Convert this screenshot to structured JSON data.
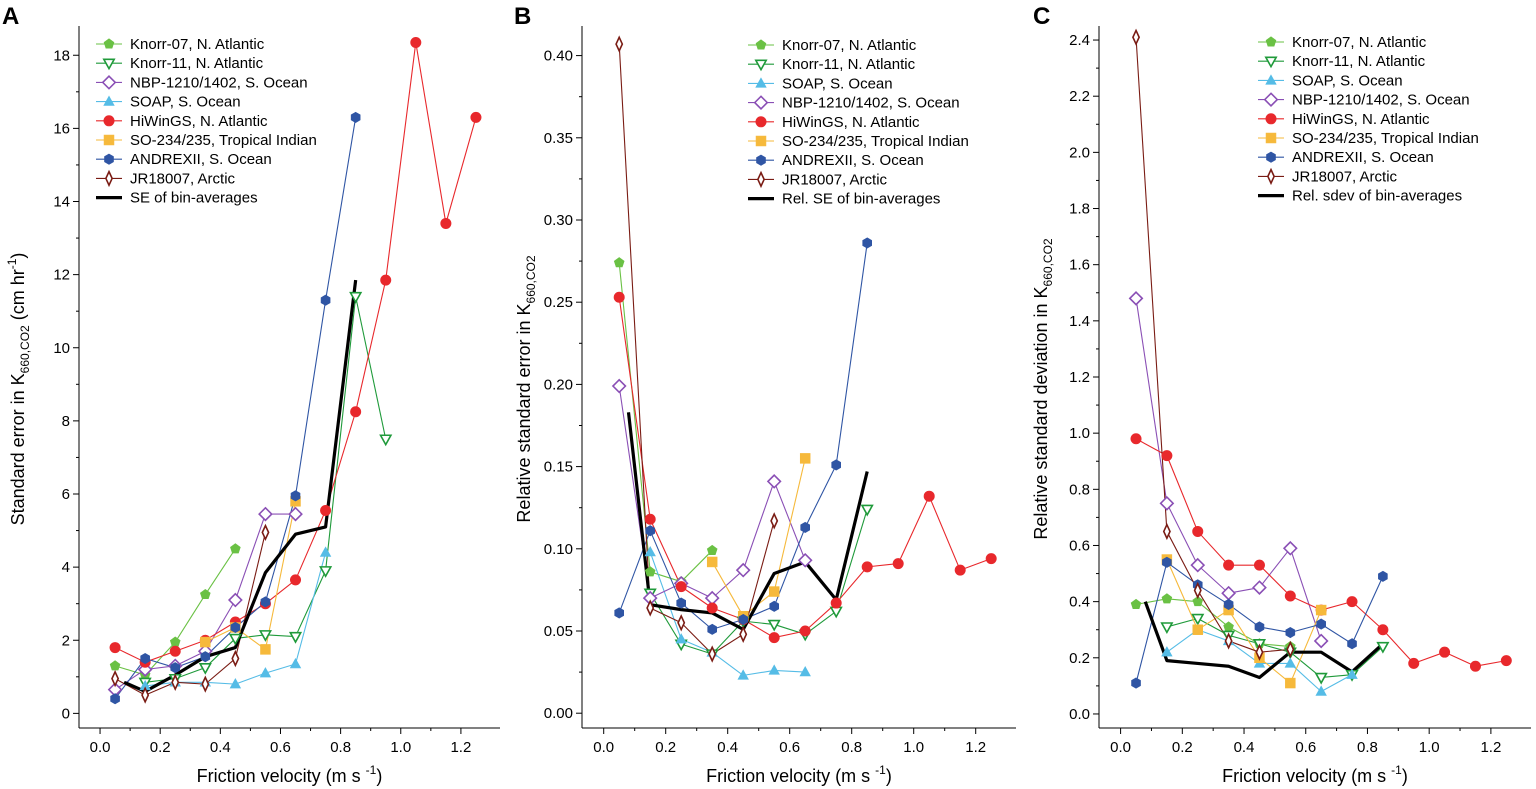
{
  "chart_data": [
    {
      "type": "line",
      "panel_label": "A",
      "xlabel": "Friction velocity (m s",
      "xlabel_sup": "-1",
      "xlabel_end": ")",
      "ylabel_parts": [
        "Standard error in K",
        "660,CO2",
        " (cm hr",
        "-1",
        ")"
      ],
      "xlim": [
        -0.07,
        1.33
      ],
      "ylim": [
        -0.4,
        18.8
      ],
      "xticks": [
        0.0,
        0.2,
        0.4,
        0.6,
        0.8,
        1.0,
        1.2
      ],
      "yticks": [
        0,
        2,
        4,
        6,
        8,
        10,
        12,
        14,
        16,
        18
      ],
      "xtick_labels": [
        "0.0",
        "0.2",
        "0.4",
        "0.6",
        "0.8",
        "1.0",
        "1.2"
      ],
      "ytick_labels": [
        "0",
        "2",
        "4",
        "6",
        "8",
        "10",
        "12",
        "14",
        "16",
        "18"
      ],
      "legend_position": "top-left",
      "series": [
        {
          "name": "Knorr-07, N. Atlantic",
          "color": "#6ac144",
          "marker": "pentagon-filled",
          "x": [
            0.05,
            0.15,
            0.25,
            0.35,
            0.45
          ],
          "y": [
            1.3,
            1.05,
            1.95,
            3.25,
            4.5
          ]
        },
        {
          "name": "Knorr-11, N. Atlantic",
          "color": "#1f9a3a",
          "marker": "triangle-down-open",
          "x": [
            0.15,
            0.25,
            0.35,
            0.45,
            0.55,
            0.65,
            0.75,
            0.85,
            0.95
          ],
          "y": [
            0.85,
            0.95,
            1.25,
            2.05,
            2.15,
            2.1,
            3.9,
            11.4,
            7.5
          ]
        },
        {
          "name": "NBP-1210/1402, S. Ocean",
          "color": "#8a4fb5",
          "marker": "diamond-open",
          "x": [
            0.05,
            0.15,
            0.25,
            0.35,
            0.45,
            0.55,
            0.65
          ],
          "y": [
            0.65,
            1.2,
            1.3,
            1.7,
            3.1,
            5.45,
            5.45
          ]
        },
        {
          "name": "SOAP, S. Ocean",
          "color": "#55bce6",
          "marker": "triangle-up-filled",
          "x": [
            0.15,
            0.25,
            0.35,
            0.45,
            0.55,
            0.65,
            0.75
          ],
          "y": [
            0.75,
            0.85,
            0.85,
            0.8,
            1.1,
            1.35,
            4.4
          ]
        },
        {
          "name": "HiWinGS, N. Atlantic",
          "color": "#e8282c",
          "marker": "circle-filled",
          "x": [
            0.05,
            0.15,
            0.25,
            0.35,
            0.45,
            0.55,
            0.65,
            0.75,
            0.85,
            0.95,
            1.05,
            1.15,
            1.25
          ],
          "y": [
            1.8,
            1.4,
            1.7,
            2.0,
            2.5,
            3.0,
            3.65,
            5.55,
            8.25,
            11.85,
            18.35,
            13.4,
            16.3
          ]
        },
        {
          "name": "SO-234/235, Tropical Indian",
          "color": "#f6b93b",
          "marker": "square-filled",
          "x": [
            0.35,
            0.45,
            0.55,
            0.65
          ],
          "y": [
            1.95,
            2.35,
            1.75,
            5.8
          ]
        },
        {
          "name": "ANDREXII, S. Ocean",
          "color": "#2f55a4",
          "marker": "hexagon-filled",
          "x": [
            0.05,
            0.15,
            0.25,
            0.35,
            0.45,
            0.55,
            0.65,
            0.75,
            0.85
          ],
          "y": [
            0.4,
            1.5,
            1.25,
            1.55,
            2.35,
            3.05,
            5.95,
            11.3,
            16.3
          ]
        },
        {
          "name": "JR18007, Arctic",
          "color": "#7a1c14",
          "marker": "narrow-diamond-open",
          "x": [
            0.05,
            0.15,
            0.25,
            0.35,
            0.45,
            0.55
          ],
          "y": [
            0.95,
            0.5,
            0.85,
            0.8,
            1.5,
            4.95
          ]
        },
        {
          "name": "SE of bin-averages",
          "color": "#000000",
          "marker": "none",
          "thick": true,
          "x": [
            0.08,
            0.15,
            0.25,
            0.35,
            0.45,
            0.55,
            0.65,
            0.75,
            0.85
          ],
          "y": [
            0.85,
            0.6,
            1.05,
            1.55,
            1.8,
            3.85,
            4.9,
            5.1,
            11.85
          ]
        }
      ]
    },
    {
      "type": "line",
      "panel_label": "B",
      "xlabel": "Friction velocity (m s",
      "xlabel_sup": "-1",
      "xlabel_end": ")",
      "ylabel_parts": [
        "Relative standard error in K",
        "660,CO2",
        "",
        "",
        ""
      ],
      "xlim": [
        -0.07,
        1.33
      ],
      "ylim": [
        -0.009,
        0.418
      ],
      "xticks": [
        0.0,
        0.2,
        0.4,
        0.6,
        0.8,
        1.0,
        1.2
      ],
      "yticks": [
        0.0,
        0.05,
        0.1,
        0.15,
        0.2,
        0.25,
        0.3,
        0.35,
        0.4
      ],
      "xtick_labels": [
        "0.0",
        "0.2",
        "0.4",
        "0.6",
        "0.8",
        "1.0",
        "1.2"
      ],
      "ytick_labels": [
        "0.00",
        "0.05",
        "0.10",
        "0.15",
        "0.20",
        "0.25",
        "0.30",
        "0.35",
        "0.40"
      ],
      "legend_position": "top-right",
      "series": [
        {
          "name": "Knorr-07, N. Atlantic",
          "color": "#6ac144",
          "marker": "pentagon-filled",
          "x": [
            0.05,
            0.15,
            0.25,
            0.35
          ],
          "y": [
            0.274,
            0.086,
            0.08,
            0.099
          ]
        },
        {
          "name": "Knorr-11, N. Atlantic",
          "color": "#1f9a3a",
          "marker": "triangle-down-open",
          "x": [
            0.15,
            0.25,
            0.35,
            0.45,
            0.55,
            0.65,
            0.75,
            0.85
          ],
          "y": [
            0.073,
            0.042,
            0.036,
            0.056,
            0.054,
            0.048,
            0.062,
            0.124
          ]
        },
        {
          "name": "SOAP, S. Ocean",
          "color": "#55bce6",
          "marker": "triangle-up-filled",
          "x": [
            0.15,
            0.25,
            0.35,
            0.45,
            0.55,
            0.65
          ],
          "y": [
            0.098,
            0.045,
            0.037,
            0.023,
            0.026,
            0.025
          ]
        },
        {
          "name": "NBP-1210/1402, S. Ocean",
          "color": "#8a4fb5",
          "marker": "diamond-open",
          "x": [
            0.05,
            0.15,
            0.25,
            0.35,
            0.45,
            0.55,
            0.65
          ],
          "y": [
            0.199,
            0.07,
            0.079,
            0.07,
            0.087,
            0.141,
            0.093
          ]
        },
        {
          "name": "HiWinGS, N. Atlantic",
          "color": "#e8282c",
          "marker": "circle-filled",
          "x": [
            0.05,
            0.15,
            0.25,
            0.35,
            0.45,
            0.55,
            0.65,
            0.75,
            0.85,
            0.95,
            1.05,
            1.15,
            1.25
          ],
          "y": [
            0.253,
            0.118,
            0.077,
            0.064,
            0.057,
            0.046,
            0.05,
            0.067,
            0.089,
            0.091,
            0.132,
            0.087,
            0.094
          ]
        },
        {
          "name": "SO-234/235, Tropical Indian",
          "color": "#f6b93b",
          "marker": "square-filled",
          "x": [
            0.35,
            0.45,
            0.55,
            0.65
          ],
          "y": [
            0.092,
            0.059,
            0.074,
            0.155
          ]
        },
        {
          "name": "ANDREXII, S. Ocean",
          "color": "#2f55a4",
          "marker": "hexagon-filled",
          "x": [
            0.05,
            0.15,
            0.25,
            0.35,
            0.45,
            0.55,
            0.65,
            0.75,
            0.85
          ],
          "y": [
            0.061,
            0.111,
            0.067,
            0.051,
            0.057,
            0.065,
            0.113,
            0.151,
            0.286
          ]
        },
        {
          "name": "JR18007, Arctic",
          "color": "#7a1c14",
          "marker": "narrow-diamond-open",
          "x": [
            0.05,
            0.15,
            0.25,
            0.35,
            0.45,
            0.55
          ],
          "y": [
            0.407,
            0.064,
            0.055,
            0.036,
            0.048,
            0.117
          ]
        },
        {
          "name": "Rel. SE of bin-averages",
          "color": "#000000",
          "marker": "none",
          "thick": true,
          "x": [
            0.08,
            0.15,
            0.25,
            0.35,
            0.45,
            0.55,
            0.65,
            0.75,
            0.85
          ],
          "y": [
            0.183,
            0.066,
            0.063,
            0.061,
            0.051,
            0.085,
            0.092,
            0.069,
            0.147
          ]
        }
      ]
    },
    {
      "type": "line",
      "panel_label": "C",
      "xlabel": "Friction velocity (m s",
      "xlabel_sup": "-1",
      "xlabel_end": ")",
      "ylabel_parts": [
        "Relative standard deviation in K",
        "660,CO2",
        "",
        "",
        ""
      ],
      "xlim": [
        -0.07,
        1.33
      ],
      "ylim": [
        -0.05,
        2.45
      ],
      "xticks": [
        0.0,
        0.2,
        0.4,
        0.6,
        0.8,
        1.0,
        1.2
      ],
      "yticks": [
        0.0,
        0.2,
        0.4,
        0.6,
        0.8,
        1.0,
        1.2,
        1.4,
        1.6,
        1.8,
        2.0,
        2.2,
        2.4
      ],
      "xtick_labels": [
        "0.0",
        "0.2",
        "0.4",
        "0.6",
        "0.8",
        "1.0",
        "1.2"
      ],
      "ytick_labels": [
        "0.0",
        "0.2",
        "0.4",
        "0.6",
        "0.8",
        "1.0",
        "1.2",
        "1.4",
        "1.6",
        "1.8",
        "2.0",
        "2.2",
        "2.4"
      ],
      "legend_position": "top-right",
      "series": [
        {
          "name": "Knorr-07, N. Atlantic",
          "color": "#6ac144",
          "marker": "pentagon-filled",
          "x": [
            0.05,
            0.15,
            0.25,
            0.35,
            0.45,
            0.55
          ],
          "y": [
            0.39,
            0.41,
            0.4,
            0.31,
            0.25,
            0.24
          ]
        },
        {
          "name": "Knorr-11, N. Atlantic",
          "color": "#1f9a3a",
          "marker": "triangle-down-open",
          "x": [
            0.15,
            0.25,
            0.35,
            0.45,
            0.55,
            0.65,
            0.75,
            0.85
          ],
          "y": [
            0.31,
            0.34,
            0.28,
            0.25,
            0.22,
            0.13,
            0.14,
            0.24
          ]
        },
        {
          "name": "SOAP, S. Ocean",
          "color": "#55bce6",
          "marker": "triangle-up-filled",
          "x": [
            0.15,
            0.25,
            0.35,
            0.45,
            0.55,
            0.65,
            0.75
          ],
          "y": [
            0.22,
            0.3,
            0.26,
            0.18,
            0.18,
            0.08,
            0.14
          ]
        },
        {
          "name": "NBP-1210/1402, S. Ocean",
          "color": "#8a4fb5",
          "marker": "diamond-open",
          "x": [
            0.05,
            0.15,
            0.25,
            0.35,
            0.45,
            0.55,
            0.65
          ],
          "y": [
            1.48,
            0.75,
            0.53,
            0.43,
            0.45,
            0.59,
            0.26
          ]
        },
        {
          "name": "HiWinGS, N. Atlantic",
          "color": "#e8282c",
          "marker": "circle-filled",
          "x": [
            0.05,
            0.15,
            0.25,
            0.35,
            0.45,
            0.55,
            0.65,
            0.75,
            0.85,
            0.95,
            1.05,
            1.15,
            1.25
          ],
          "y": [
            0.98,
            0.92,
            0.65,
            0.53,
            0.53,
            0.42,
            0.37,
            0.4,
            0.3,
            0.18,
            0.22,
            0.17,
            0.19
          ]
        },
        {
          "name": "SO-234/235, Tropical Indian",
          "color": "#f6b93b",
          "marker": "square-filled",
          "x": [
            0.15,
            0.25,
            0.35,
            0.45,
            0.55,
            0.65
          ],
          "y": [
            0.55,
            0.3,
            0.37,
            0.2,
            0.11,
            0.37
          ]
        },
        {
          "name": "ANDREXII, S. Ocean",
          "color": "#2f55a4",
          "marker": "hexagon-filled",
          "x": [
            0.05,
            0.15,
            0.25,
            0.35,
            0.45,
            0.55,
            0.65,
            0.75,
            0.85
          ],
          "y": [
            0.11,
            0.54,
            0.46,
            0.39,
            0.31,
            0.29,
            0.32,
            0.25,
            0.49
          ]
        },
        {
          "name": "JR18007, Arctic",
          "color": "#7a1c14",
          "marker": "narrow-diamond-open",
          "x": [
            0.05,
            0.15,
            0.25,
            0.35,
            0.45,
            0.55
          ],
          "y": [
            2.41,
            0.65,
            0.44,
            0.26,
            0.22,
            0.23
          ]
        },
        {
          "name": "Rel. sdev of bin-averages",
          "color": "#000000",
          "marker": "none",
          "thick": true,
          "x": [
            0.08,
            0.15,
            0.25,
            0.35,
            0.45,
            0.55,
            0.65,
            0.75,
            0.85
          ],
          "y": [
            0.4,
            0.19,
            0.18,
            0.17,
            0.13,
            0.22,
            0.22,
            0.15,
            0.25
          ]
        }
      ]
    }
  ]
}
